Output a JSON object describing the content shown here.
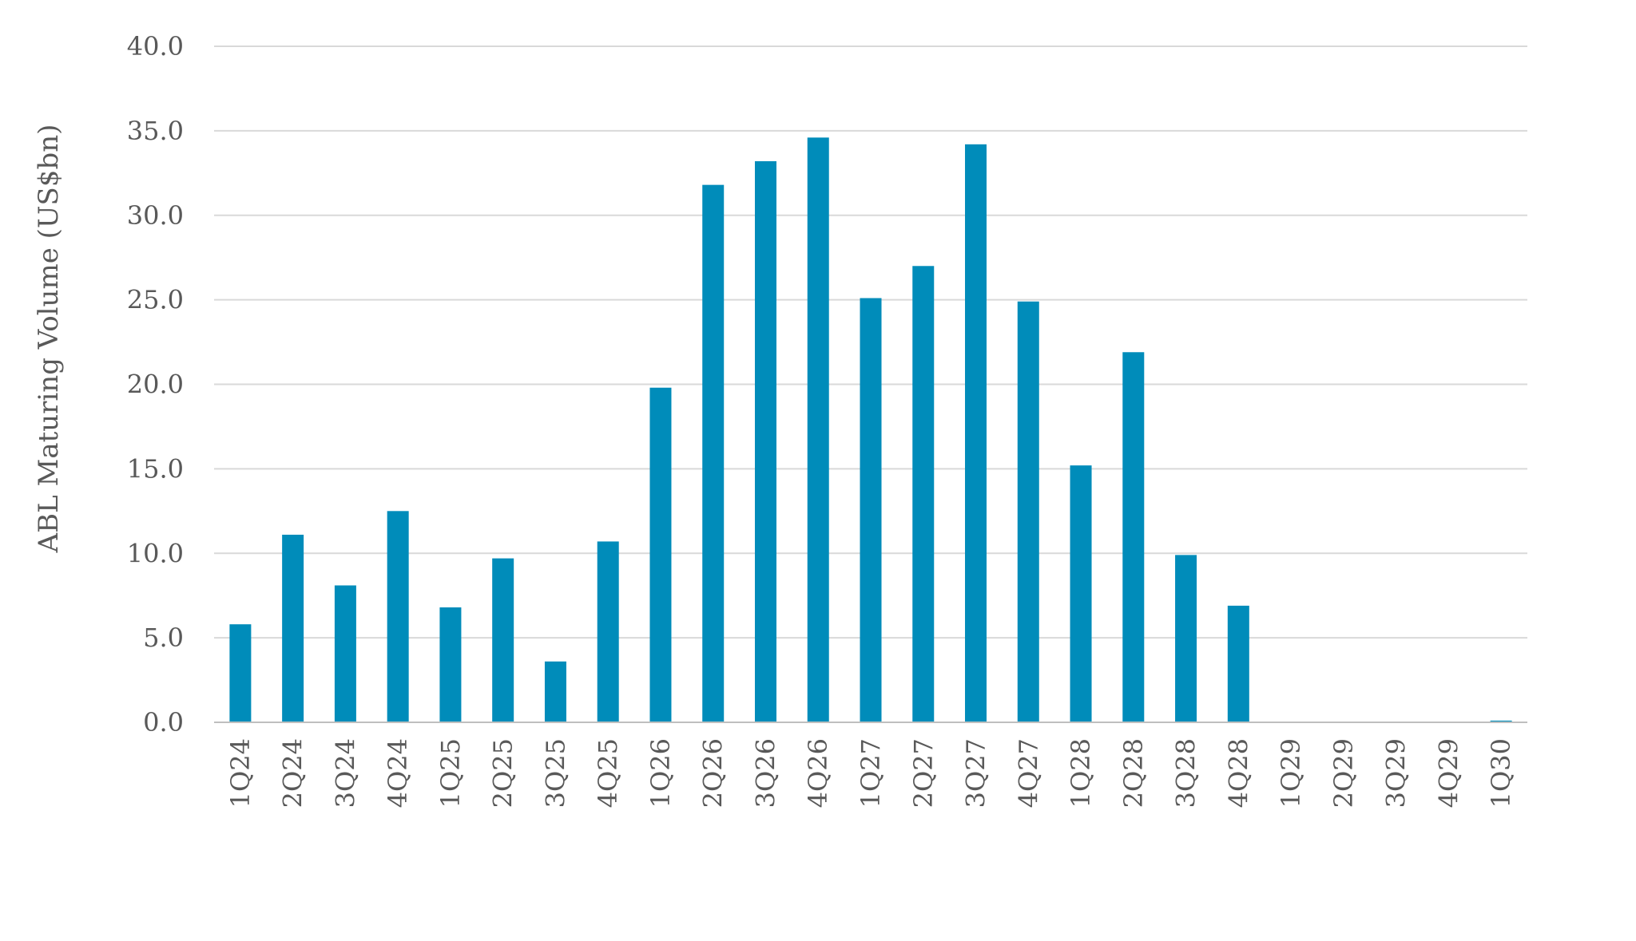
{
  "colors": {
    "bar": "#008CBA",
    "grid": "#D9D9D9",
    "text": "#595959"
  },
  "chart_data": {
    "type": "bar",
    "title": "",
    "xlabel": "",
    "ylabel": "ABL Maturing Volume (US$bn)",
    "ylim": [
      0,
      40
    ],
    "yticks": [
      "0.0",
      "5.0",
      "10.0",
      "15.0",
      "20.0",
      "25.0",
      "30.0",
      "35.0",
      "40.0"
    ],
    "grid": true,
    "categories": [
      "1Q24",
      "2Q24",
      "3Q24",
      "4Q24",
      "1Q25",
      "2Q25",
      "3Q25",
      "4Q25",
      "1Q26",
      "2Q26",
      "3Q26",
      "4Q26",
      "1Q27",
      "2Q27",
      "3Q27",
      "4Q27",
      "1Q28",
      "2Q28",
      "3Q28",
      "4Q28",
      "1Q29",
      "2Q29",
      "3Q29",
      "4Q29",
      "1Q30"
    ],
    "values": [
      5.8,
      11.1,
      8.1,
      12.5,
      6.8,
      9.7,
      3.6,
      10.7,
      19.8,
      31.8,
      33.2,
      34.6,
      25.1,
      27.0,
      34.2,
      24.9,
      15.2,
      21.9,
      9.9,
      6.9,
      0.0,
      0.0,
      0.0,
      0.0,
      0.1
    ]
  }
}
